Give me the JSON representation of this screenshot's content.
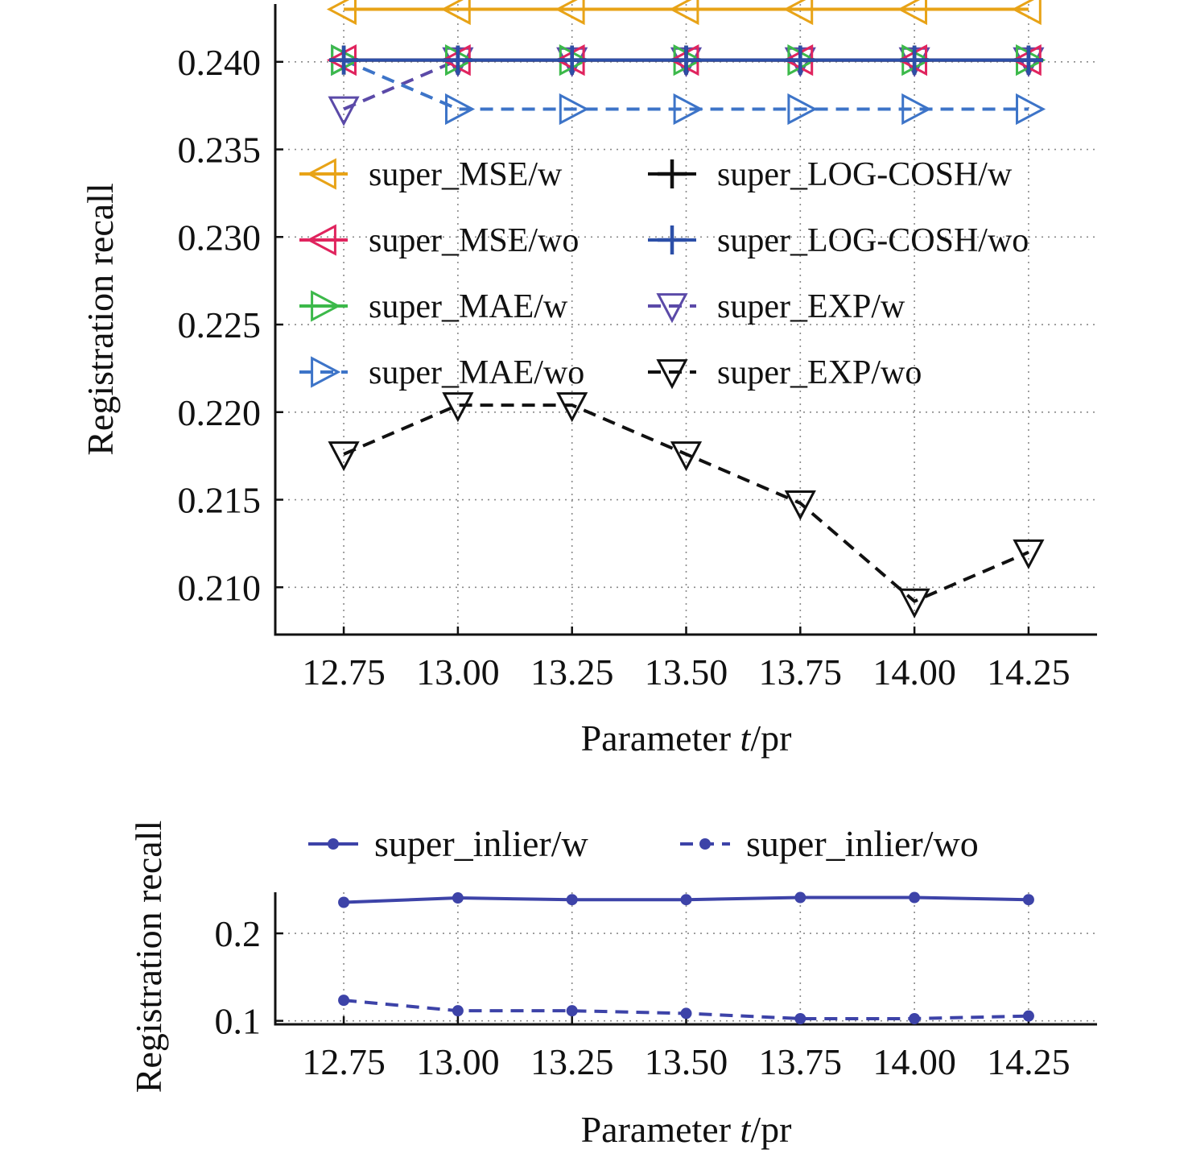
{
  "chart_data": [
    {
      "type": "line",
      "xlabel": {
        "prefix": "Parameter ",
        "italic": "t",
        "suffix": "/pr"
      },
      "ylabel": "Registration recall",
      "x": [
        12.75,
        13.0,
        13.25,
        13.5,
        13.75,
        14.0,
        14.25
      ],
      "xtick_labels": [
        "12.75",
        "13.00",
        "13.25",
        "13.50",
        "13.75",
        "14.00",
        "14.25"
      ],
      "ylim": [
        0.2073,
        0.2433
      ],
      "yticks": [
        0.21,
        0.215,
        0.22,
        0.225,
        0.23,
        0.235,
        0.24
      ],
      "ytick_labels": [
        "0.210",
        "0.215",
        "0.220",
        "0.225",
        "0.230",
        "0.235",
        "0.240"
      ],
      "grid": true,
      "legend_position": "upper-center, two columns",
      "series": [
        {
          "name": "super_MSE/w",
          "color": "#e8a317",
          "marker": "triangle-left",
          "dash": false,
          "values": [
            0.243,
            0.243,
            0.243,
            0.243,
            0.243,
            0.243,
            0.243
          ]
        },
        {
          "name": "super_MSE/wo",
          "color": "#e0245e",
          "marker": "triangle-left",
          "dash": false,
          "values": [
            0.2401,
            0.2401,
            0.2401,
            0.2401,
            0.2401,
            0.2401,
            0.2401
          ]
        },
        {
          "name": "super_MAE/w",
          "color": "#3cb94a",
          "marker": "triangle-right",
          "dash": false,
          "values": [
            0.2401,
            0.2401,
            0.2401,
            0.2401,
            0.2401,
            0.2401,
            0.2401
          ]
        },
        {
          "name": "super_MAE/wo",
          "color": "#3d74c8",
          "marker": "triangle-right",
          "dash": true,
          "values": [
            0.2401,
            0.2373,
            0.2373,
            0.2373,
            0.2373,
            0.2373,
            0.2373
          ]
        },
        {
          "name": "super_LOG-COSH/w",
          "color": "#111111",
          "marker": "plus",
          "dash": false,
          "values": [
            0.2401,
            0.2401,
            0.2401,
            0.2401,
            0.2401,
            0.2401,
            0.2401
          ]
        },
        {
          "name": "super_LOG-COSH/wo",
          "color": "#2c4fa8",
          "marker": "plus",
          "dash": false,
          "values": [
            0.2401,
            0.2401,
            0.2401,
            0.2401,
            0.2401,
            0.2401,
            0.2401
          ]
        },
        {
          "name": "super_EXP/w",
          "color": "#5b4aa8",
          "marker": "triangle-down",
          "dash": true,
          "values": [
            0.2373,
            0.2401,
            0.2401,
            0.2401,
            0.2401,
            0.2401,
            0.2401
          ]
        },
        {
          "name": "super_EXP/wo",
          "color": "#111111",
          "marker": "triangle-down",
          "dash": true,
          "values": [
            0.2176,
            0.2204,
            0.2204,
            0.2176,
            0.2148,
            0.2092,
            0.212
          ]
        }
      ]
    },
    {
      "type": "line",
      "xlabel": {
        "prefix": "Parameter ",
        "italic": "t",
        "suffix": "/pr"
      },
      "ylabel": "Registration recall",
      "x": [
        12.75,
        13.0,
        13.25,
        13.5,
        13.75,
        14.0,
        14.25
      ],
      "xtick_labels": [
        "12.75",
        "13.00",
        "13.25",
        "13.50",
        "13.75",
        "14.00",
        "14.25"
      ],
      "ylim": [
        0.096,
        0.247
      ],
      "yticks": [
        0.1,
        0.2
      ],
      "ytick_labels": [
        "0.1",
        "0.2"
      ],
      "grid": true,
      "legend_position": "above plot, one row",
      "series": [
        {
          "name": "super_inlier/w",
          "color": "#3d43a8",
          "marker": "dot",
          "dash": false,
          "values": [
            0.2355,
            0.2405,
            0.2385,
            0.2385,
            0.241,
            0.241,
            0.2385
          ]
        },
        {
          "name": "super_inlier/wo",
          "color": "#3d43a8",
          "marker": "dot",
          "dash": true,
          "values": [
            0.1235,
            0.1115,
            0.1115,
            0.1085,
            0.1025,
            0.1025,
            0.1055
          ]
        }
      ]
    }
  ]
}
